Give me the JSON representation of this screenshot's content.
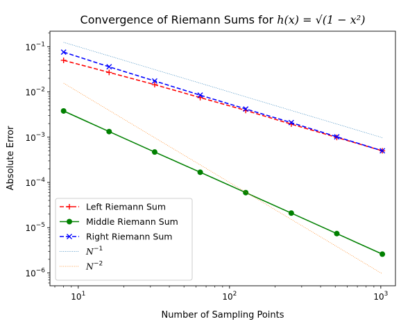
{
  "chart_data": {
    "type": "line",
    "title_prefix": "Convergence of Riemann Sums for ",
    "title_math": "h(x) = √(1 − x²)",
    "xlabel": "Number of Sampling Points",
    "ylabel": "Absolute Error",
    "xscale": "log",
    "yscale": "log",
    "xlim": [
      6.5,
      1250
    ],
    "ylim": [
      5.2e-07,
      0.22
    ],
    "grid": false,
    "legend_position": "lower-left",
    "x": [
      8,
      16,
      32,
      64,
      128,
      256,
      512,
      1024
    ],
    "series": [
      {
        "name": "Left Riemann Sum",
        "color": "#ff0000",
        "linestyle": "dashed",
        "marker": "plus",
        "values": [
          0.05,
          0.027,
          0.0145,
          0.0075,
          0.0039,
          0.00195,
          0.00099,
          0.0005
        ]
      },
      {
        "name": "Middle Riemann Sum",
        "color": "#008000",
        "linestyle": "solid",
        "marker": "circle",
        "values": [
          0.0038,
          0.00133,
          0.00047,
          0.000168,
          5.95e-05,
          2.1e-05,
          7.4e-06,
          2.6e-06
        ]
      },
      {
        "name": "Right Riemann Sum",
        "color": "#0000ff",
        "linestyle": "dashed",
        "marker": "x",
        "values": [
          0.076,
          0.036,
          0.0175,
          0.0085,
          0.0042,
          0.0021,
          0.00102,
          0.0005
        ]
      },
      {
        "name": "N^-1",
        "color": "#1f77b4",
        "linestyle": "dotted",
        "marker": "none",
        "values": [
          0.125,
          0.0625,
          0.03125,
          0.015625,
          0.0078125,
          0.00390625,
          0.001953125,
          0.0009765625
        ]
      },
      {
        "name": "N^-2",
        "color": "#ff7f0e",
        "linestyle": "dotted",
        "marker": "none",
        "values": [
          0.015625,
          0.00390625,
          0.0009765625,
          0.000244140625,
          6.103515625e-05,
          1.52587890625e-05,
          3.814697265625e-06,
          9.5367431640625e-07
        ]
      }
    ],
    "x_ticks": [
      {
        "value": 10,
        "base": "10",
        "exp": "1"
      },
      {
        "value": 100,
        "base": "10",
        "exp": "2"
      },
      {
        "value": 1000,
        "base": "10",
        "exp": "3"
      }
    ],
    "y_ticks": [
      {
        "value": 1e-06,
        "base": "10",
        "exp": "−6"
      },
      {
        "value": 1e-05,
        "base": "10",
        "exp": "−5"
      },
      {
        "value": 0.0001,
        "base": "10",
        "exp": "−4"
      },
      {
        "value": 0.001,
        "base": "10",
        "exp": "−3"
      },
      {
        "value": 0.01,
        "base": "10",
        "exp": "−2"
      },
      {
        "value": 0.1,
        "base": "10",
        "exp": "−1"
      }
    ],
    "legend": [
      {
        "label": "Left Riemann Sum"
      },
      {
        "label": "Middle Riemann Sum"
      },
      {
        "label": "Right Riemann Sum"
      },
      {
        "label_base": "N",
        "label_exp": "−1"
      },
      {
        "label_base": "N",
        "label_exp": "−2"
      }
    ]
  }
}
